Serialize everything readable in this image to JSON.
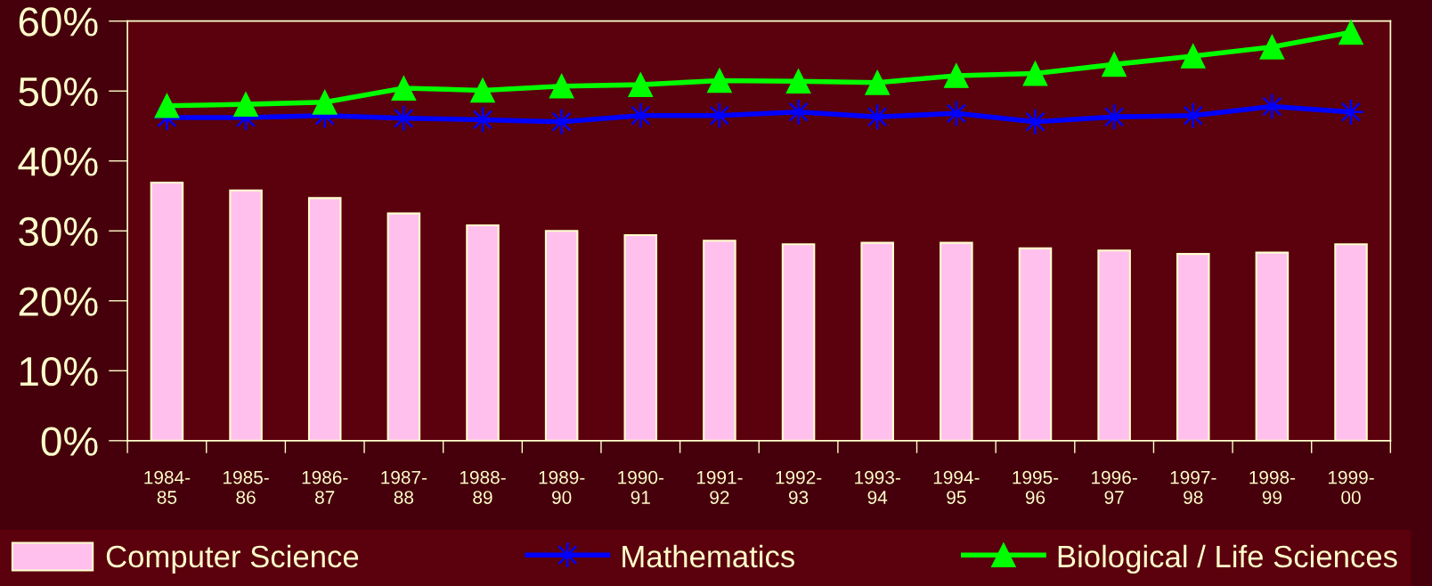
{
  "chart_data": {
    "type": "bar",
    "categories": [
      "1984-85",
      "1985-86",
      "1986-87",
      "1987-88",
      "1988-89",
      "1989-90",
      "1990-91",
      "1991-92",
      "1992-93",
      "1993-94",
      "1994-95",
      "1995-96",
      "1996-97",
      "1997-98",
      "1998-99",
      "1999-00"
    ],
    "series": [
      {
        "name": "Computer Science",
        "color": "#ffc0ee",
        "values": [
          36.9,
          35.8,
          34.7,
          32.5,
          30.8,
          30.0,
          29.4,
          28.6,
          28.1,
          28.3,
          28.3,
          27.5,
          27.2,
          26.7,
          26.9,
          28.1
        ]
      },
      {
        "name": "Mathematics",
        "type": "line",
        "color": "#0000ff",
        "marker": "star",
        "values": [
          46.2,
          46.2,
          46.5,
          46.1,
          45.9,
          45.6,
          46.5,
          46.5,
          47.0,
          46.3,
          46.8,
          45.6,
          46.3,
          46.5,
          47.8,
          47.0
        ]
      },
      {
        "name": "Biological / Life Sciences",
        "type": "line",
        "color": "#00ff00",
        "marker": "triangle",
        "values": [
          47.9,
          48.1,
          48.4,
          50.4,
          50.1,
          50.7,
          50.9,
          51.5,
          51.4,
          51.2,
          52.2,
          52.5,
          53.8,
          55.0,
          56.3,
          58.4
        ]
      }
    ],
    "ylim": [
      0,
      60
    ],
    "yticks": [
      {
        "value": 0,
        "label": "0%"
      },
      {
        "value": 10,
        "label": "10%"
      },
      {
        "value": 20,
        "label": "20%"
      },
      {
        "value": 30,
        "label": "30%"
      },
      {
        "value": 40,
        "label": "40%"
      },
      {
        "value": 50,
        "label": "50%"
      },
      {
        "value": 60,
        "label": "60%"
      }
    ],
    "grid": false,
    "legend": "bottom",
    "line_style": "solid"
  }
}
